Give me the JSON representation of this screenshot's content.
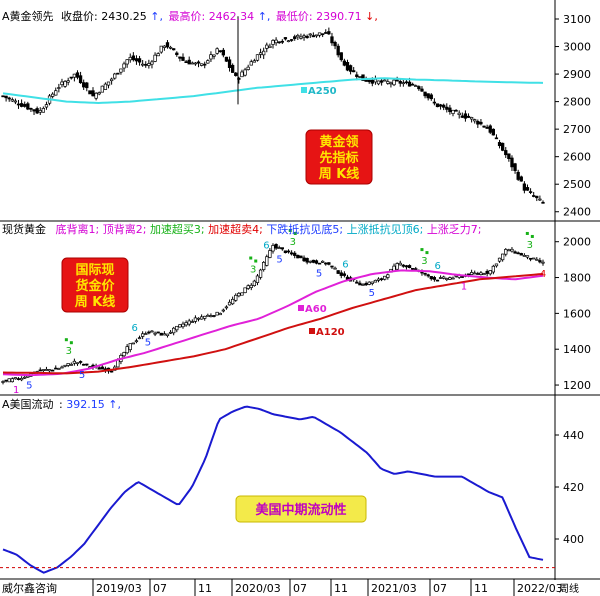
{
  "colors": {
    "up": "#000000",
    "down": "#000000",
    "ma250": "#40e0e6",
    "ma60": "#e021d8",
    "ma120": "#d01010",
    "flow": "#1a1ad0",
    "magenta": "#d400d4",
    "red": "#e00000",
    "blue": "#1e3cff",
    "green": "#17b117",
    "cyan": "#00a9c6",
    "dashed": "#d00000",
    "box_bg": "#e61414",
    "box_text": "#ffe600",
    "yellow_box_bg": "#f3ea4a",
    "yellow_box_text": "#c000c0"
  },
  "panel1": {
    "name": "A黄金领先",
    "close_label": "收盘价:",
    "close_value": "2430.25",
    "close_arrow": "↑,",
    "high_label": "最高价:",
    "high_value": "2462.34",
    "high_arrow": "↑,",
    "low_label": "最低价:",
    "low_value": "2390.71",
    "low_arrow": "↓,",
    "ma_label": "A250",
    "box_lines": [
      "黄金领",
      "先指标",
      "周  K线"
    ],
    "ticks": [
      "3100",
      "3000",
      "2900",
      "2800",
      "2700",
      "2600",
      "2500",
      "2400"
    ]
  },
  "panel2": {
    "name": "现货黄金",
    "legend": [
      {
        "text": "底背离1;",
        "color": "magenta"
      },
      {
        "text": "顶背离2;",
        "color": "magenta"
      },
      {
        "text": "加速超买3;",
        "color": "green"
      },
      {
        "text": "加速超卖4;",
        "color": "red"
      },
      {
        "text": "下跌抵抗见底5;",
        "color": "blue"
      },
      {
        "text": "上涨抵抗见顶6;",
        "color": "cyan"
      },
      {
        "text": "上涨乏力7;",
        "color": "magenta"
      }
    ],
    "box_lines": [
      "国际现",
      "货金价",
      "周  K线"
    ],
    "ma60_label": "A60",
    "ma120_label": "A120",
    "ticks": [
      "2000",
      "1800",
      "1600",
      "1400",
      "1200"
    ]
  },
  "panel3": {
    "name": "A美国流动",
    "value": "392.15",
    "arrow": "↑,",
    "box_text": "美国中期流动性",
    "ticks": [
      "440",
      "420",
      "400"
    ]
  },
  "xaxis": {
    "source": "威尔鑫咨询",
    "labels": [
      "2019/03",
      "07",
      "11",
      "2020/03",
      "07",
      "11",
      "2021/03",
      "07",
      "11",
      "2022/03"
    ],
    "period": "周线"
  },
  "chart_data": [
    {
      "type": "line",
      "title": "A黄金领先",
      "x_unit": "week",
      "xrange": [
        "2018-11",
        "2022-04"
      ],
      "ylim": [
        2370,
        3140
      ],
      "series": [
        {
          "name": "收盘价",
          "kind": "candlestick-approx",
          "values": [
            2820,
            2790,
            2760,
            2850,
            2900,
            2820,
            2880,
            2960,
            2930,
            3010,
            2950,
            2930,
            2990,
            2880,
            2960,
            3020,
            3030,
            3040,
            3050,
            2930,
            2880,
            2870,
            2870,
            2860,
            2790,
            2760,
            2740,
            2700,
            2600,
            2480,
            2430
          ]
        },
        {
          "name": "A250",
          "values": [
            2830,
            2815,
            2800,
            2795,
            2800,
            2810,
            2820,
            2835,
            2850,
            2860,
            2870,
            2880,
            2885,
            2880,
            2877,
            2873,
            2870,
            2868
          ]
        }
      ],
      "annotations": {
        "close": 2430.25,
        "high": 2462.34,
        "low": 2390.71
      }
    },
    {
      "type": "line",
      "title": "现货黄金",
      "x_unit": "week",
      "xrange": [
        "2018-11",
        "2022-04"
      ],
      "ylim": [
        1150,
        2110
      ],
      "series": [
        {
          "name": "现货黄金",
          "kind": "candlestick-approx",
          "values": [
            1220,
            1240,
            1280,
            1290,
            1330,
            1300,
            1280,
            1420,
            1500,
            1480,
            1540,
            1580,
            1600,
            1700,
            1780,
            1980,
            1930,
            1890,
            1880,
            1800,
            1760,
            1790,
            1880,
            1840,
            1790,
            1800,
            1820,
            1830,
            1960,
            1920,
            1880
          ]
        },
        {
          "name": "A60",
          "values": [
            1260,
            1255,
            1262,
            1290,
            1340,
            1380,
            1430,
            1480,
            1530,
            1570,
            1640,
            1720,
            1780,
            1820,
            1840,
            1835,
            1815,
            1800,
            1790,
            1810
          ]
        },
        {
          "name": "A120",
          "values": [
            1270,
            1268,
            1265,
            1275,
            1300,
            1330,
            1360,
            1400,
            1460,
            1520,
            1570,
            1630,
            1680,
            1730,
            1760,
            1790,
            1805,
            1820
          ]
        }
      ],
      "signals": [
        {
          "code": "1",
          "date": "2018-12"
        },
        {
          "code": "5",
          "date": "2019-01"
        },
        {
          "code": "3",
          "date": "2019-04"
        },
        {
          "code": "5",
          "date": "2019-05"
        },
        {
          "code": "6",
          "date": "2019-09"
        },
        {
          "code": "5",
          "date": "2019-10"
        },
        {
          "code": "3",
          "date": "2020-06"
        },
        {
          "code": "6",
          "date": "2020-07"
        },
        {
          "code": "5",
          "date": "2020-08"
        },
        {
          "code": "3",
          "date": "2020-09"
        },
        {
          "code": "5",
          "date": "2020-11"
        },
        {
          "code": "6",
          "date": "2021-01"
        },
        {
          "code": "5",
          "date": "2021-03"
        },
        {
          "code": "3",
          "date": "2021-07"
        },
        {
          "code": "6",
          "date": "2021-08"
        },
        {
          "code": "1",
          "date": "2021-10"
        },
        {
          "code": "3",
          "date": "2022-03"
        },
        {
          "code": "4",
          "date": "2022-04"
        }
      ]
    },
    {
      "type": "line",
      "title": "A美国流动",
      "x_unit": "week",
      "xrange": [
        "2018-11",
        "2022-04"
      ],
      "ylim": [
        385,
        455
      ],
      "series": [
        {
          "name": "A美国流动",
          "values": [
            396,
            394,
            390,
            387,
            389,
            393,
            398,
            405,
            412,
            418,
            422,
            419,
            416,
            413,
            420,
            431,
            446,
            449,
            451,
            450,
            448,
            447,
            446,
            447,
            444,
            441,
            437,
            433,
            427,
            425,
            426,
            425,
            424,
            424,
            424,
            421,
            418,
            416,
            404,
            393,
            392
          ]
        }
      ],
      "reference_line": 389
    }
  ]
}
